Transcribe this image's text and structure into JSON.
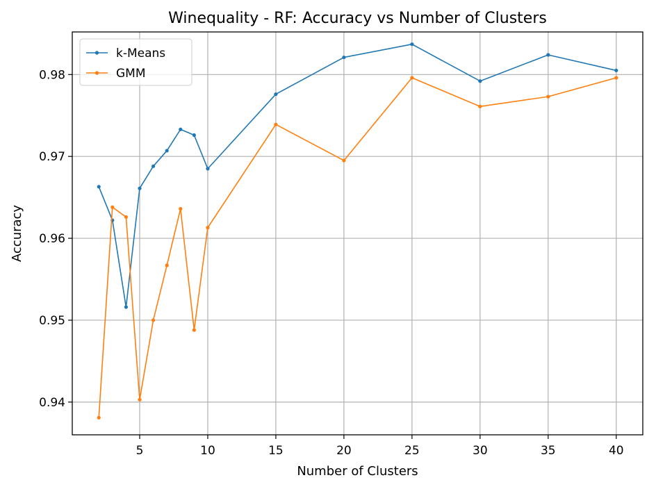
{
  "chart_data": {
    "type": "line",
    "title": "Winequality - RF: Accuracy vs Number of Clusters",
    "xlabel": "Number of Clusters",
    "ylabel": "Accuracy",
    "xlim": [
      0.05,
      41.95
    ],
    "ylim": [
      0.936,
      0.9852
    ],
    "xticks": [
      5,
      10,
      15,
      20,
      25,
      30,
      35,
      40
    ],
    "yticks": [
      0.94,
      0.95,
      0.96,
      0.97,
      0.98
    ],
    "ytick_labels": [
      "0.94",
      "0.95",
      "0.96",
      "0.97",
      "0.98"
    ],
    "grid": true,
    "legend": "top-left",
    "x": [
      2,
      3,
      4,
      5,
      6,
      7,
      8,
      9,
      10,
      15,
      20,
      25,
      30,
      35,
      40
    ],
    "series": [
      {
        "name": "k-Means",
        "color": "#1f77b4",
        "values": [
          0.9663,
          0.9622,
          0.9516,
          0.9661,
          0.9688,
          0.9707,
          0.9733,
          0.9726,
          0.9685,
          0.9776,
          0.9821,
          0.9837,
          0.9792,
          0.9824,
          0.9805
        ]
      },
      {
        "name": "GMM",
        "color": "#ff7f0e",
        "values": [
          0.9381,
          0.9638,
          0.9626,
          0.9403,
          0.95,
          0.9567,
          0.9636,
          0.9488,
          0.9613,
          0.9739,
          0.9695,
          0.9796,
          0.9761,
          0.9773,
          0.9796
        ]
      }
    ]
  }
}
